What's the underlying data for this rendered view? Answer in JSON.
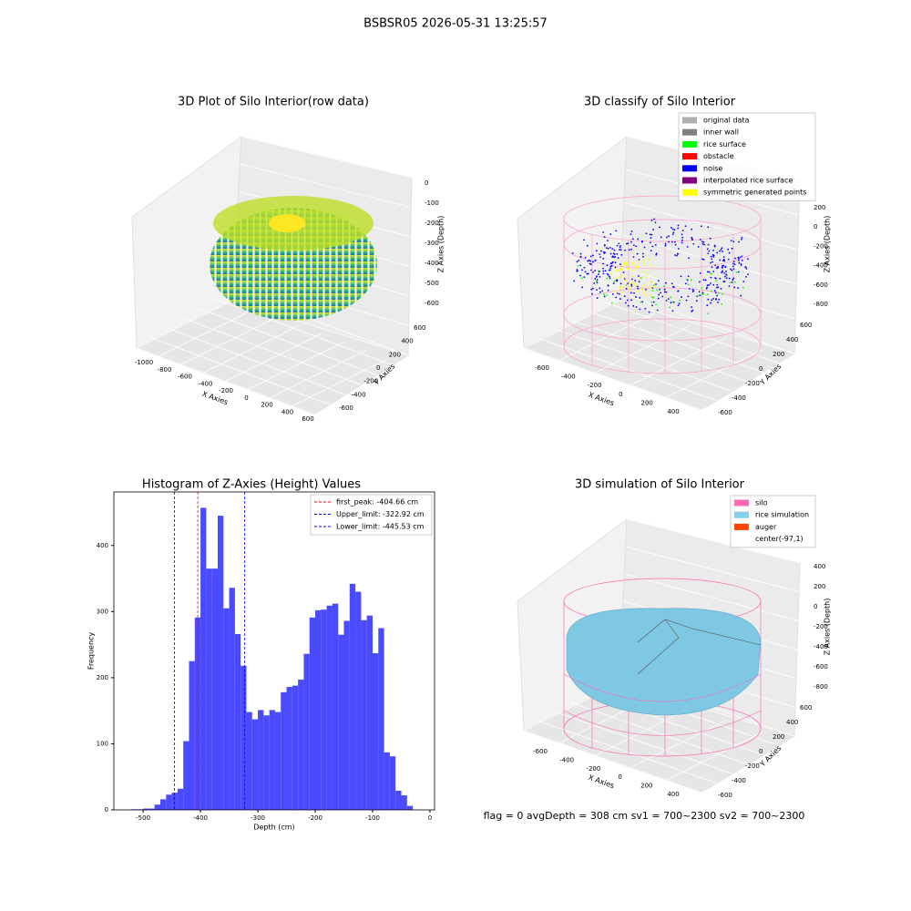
{
  "title": "BSBSR05 2026-05-31 13:25:57",
  "footer": "flag = 0     avgDepth = 308 cm  sv1 = 700~2300  sv2 = 700~2300",
  "chart_data": [
    {
      "type": "scatter3d",
      "title": "3D Plot of Silo Interior(row data)",
      "xlabel": "X Axies",
      "ylabel": "Y Axies",
      "zlabel": "Z Axies (Depth)",
      "xticks": [
        -1000,
        -800,
        -600,
        -400,
        -200,
        0,
        200,
        400,
        600
      ],
      "yticks": [
        -600,
        -400,
        -200,
        0,
        200,
        400,
        600
      ],
      "zticks": [
        0,
        -100,
        -200,
        -300,
        -400,
        -500,
        -600
      ],
      "grid": true
    },
    {
      "type": "scatter3d",
      "title": "3D classify of Silo Interior",
      "xlabel": "X Axies",
      "ylabel": "Y Axies",
      "zlabel": "Z Axies (Depth)",
      "xticks": [
        -600,
        -400,
        -200,
        0,
        200,
        400
      ],
      "yticks": [
        -600,
        -400,
        -200,
        0,
        200,
        400,
        600
      ],
      "zticks": [
        200,
        0,
        -200,
        -400,
        -600,
        -800
      ],
      "grid": true,
      "legend": [
        {
          "name": "original data",
          "color": "#b0b0b0"
        },
        {
          "name": "inner wall",
          "color": "#808080"
        },
        {
          "name": "rice surface",
          "color": "#00ff00"
        },
        {
          "name": "obstacle",
          "color": "#ff0000"
        },
        {
          "name": "noise",
          "color": "#0000ff"
        },
        {
          "name": "interpolated rice surface",
          "color": "#800080"
        },
        {
          "name": "symmetric generated points",
          "color": "#ffff00"
        }
      ]
    },
    {
      "type": "histogram",
      "title": "Histogram of Z-Axies (Height) Values",
      "xlabel": "Depth (cm)",
      "ylabel": "Frequency",
      "bins": [
        -520,
        -510,
        -500,
        -490,
        -480,
        -470,
        -460,
        -450,
        -440,
        -430,
        -420,
        -410,
        -400,
        -390,
        -380,
        -370,
        -360,
        -350,
        -340,
        -330,
        -320,
        -310,
        -300,
        -290,
        -280,
        -270,
        -260,
        -250,
        -240,
        -230,
        -220,
        -210,
        -200,
        -190,
        -180,
        -170,
        -160,
        -150,
        -140,
        -130,
        -120,
        -110,
        -100,
        -90,
        -80,
        -70,
        -60,
        -50,
        -40,
        -30
      ],
      "values": [
        1,
        1,
        2,
        2,
        8,
        16,
        23,
        26,
        32,
        104,
        225,
        291,
        457,
        365,
        365,
        445,
        305,
        336,
        266,
        218,
        148,
        137,
        151,
        143,
        151,
        148,
        178,
        186,
        188,
        197,
        236,
        291,
        302,
        303,
        309,
        312,
        265,
        286,
        342,
        330,
        287,
        294,
        237,
        275,
        87,
        81,
        29,
        22,
        6
      ],
      "color": "#4a4aff",
      "xlim": [
        -551,
        8
      ],
      "ylim": [
        0,
        481
      ],
      "xticks": [
        -500,
        -400,
        -300,
        -200,
        -100,
        0
      ],
      "yticks": [
        0,
        100,
        200,
        300,
        400
      ],
      "lines": [
        {
          "name": "first_peak: -404.66 cm",
          "value": -404.66,
          "color": "#ff0000"
        },
        {
          "name": "Upper_limit: -322.92 cm",
          "value": -322.92,
          "color": "#0000ff"
        },
        {
          "name": "Lower_limit: -445.53 cm",
          "value": -445.53,
          "color": "#0000ff"
        }
      ]
    },
    {
      "type": "scatter3d",
      "title": "3D simulation of Silo Interior",
      "xlabel": "X Axies",
      "ylabel": "Y Axies",
      "zlabel": "Z Axies (Depth)",
      "xticks": [
        -600,
        -400,
        -200,
        0,
        200,
        400
      ],
      "yticks": [
        -600,
        -400,
        -200,
        0,
        200,
        400,
        600
      ],
      "zticks": [
        400,
        200,
        0,
        -200,
        -400,
        -600,
        -800
      ],
      "grid": true,
      "legend": [
        {
          "name": "silo",
          "color": "#ff69b4"
        },
        {
          "name": "rice simulation",
          "color": "#87ceeb"
        },
        {
          "name": "auger",
          "color": "#ff4500"
        },
        {
          "name": "center(-97,1)"
        }
      ]
    }
  ]
}
